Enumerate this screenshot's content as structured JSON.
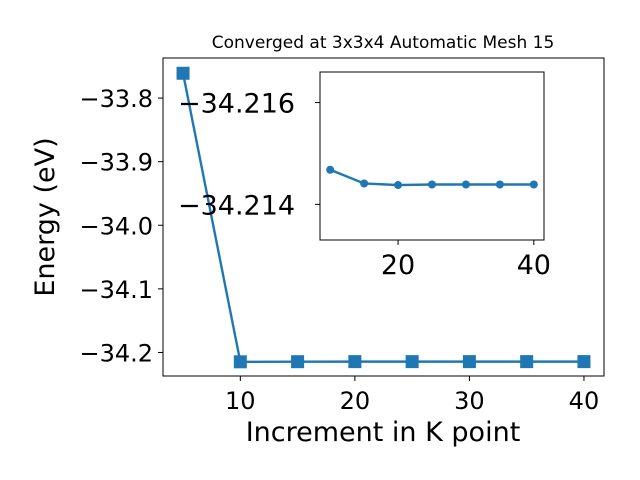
{
  "chart_data": [
    {
      "type": "line",
      "title": "Converged at 3x3x4 Automatic Mesh 15",
      "xlabel": "Increment in K point",
      "ylabel": "Energy (eV)",
      "x": [
        5,
        10,
        15,
        20,
        25,
        30,
        35,
        40
      ],
      "values": [
        -33.761,
        -34.2147,
        -34.2145,
        -34.2144,
        -34.2144,
        -34.2144,
        -34.2144,
        -34.2144
      ],
      "marker": "square",
      "color": "#1f77b4",
      "xlim": [
        3.25,
        41.75
      ],
      "ylim": [
        -34.237,
        -33.737
      ],
      "xticks": [
        10,
        20,
        30,
        40
      ],
      "xtick_labels": [
        "10",
        "20",
        "30",
        "40"
      ],
      "yticks": [
        -33.8,
        -33.9,
        -34.0,
        -34.1,
        -34.2
      ],
      "ytick_labels": [
        "−33.8",
        "−33.9",
        "−34.0",
        "−34.1",
        "−34.2"
      ],
      "grid": false
    },
    {
      "type": "line",
      "title": "",
      "xlabel": "",
      "ylabel": "",
      "x": [
        10,
        15,
        20,
        25,
        30,
        35,
        40
      ],
      "values": [
        -34.21468,
        -34.21441,
        -34.21438,
        -34.21439,
        -34.21439,
        -34.21439,
        -34.21439
      ],
      "marker": "circle",
      "color": "#1f77b4",
      "xlim": [
        8.5,
        41.5
      ],
      "ylim": [
        -34.2133,
        -34.2166
      ],
      "xticks": [
        20,
        40
      ],
      "xtick_labels": [
        "20",
        "40"
      ],
      "yticks": [
        -34.216,
        -34.214
      ],
      "ytick_labels": [
        "−34.216",
        "−34.214"
      ],
      "grid": false
    }
  ]
}
